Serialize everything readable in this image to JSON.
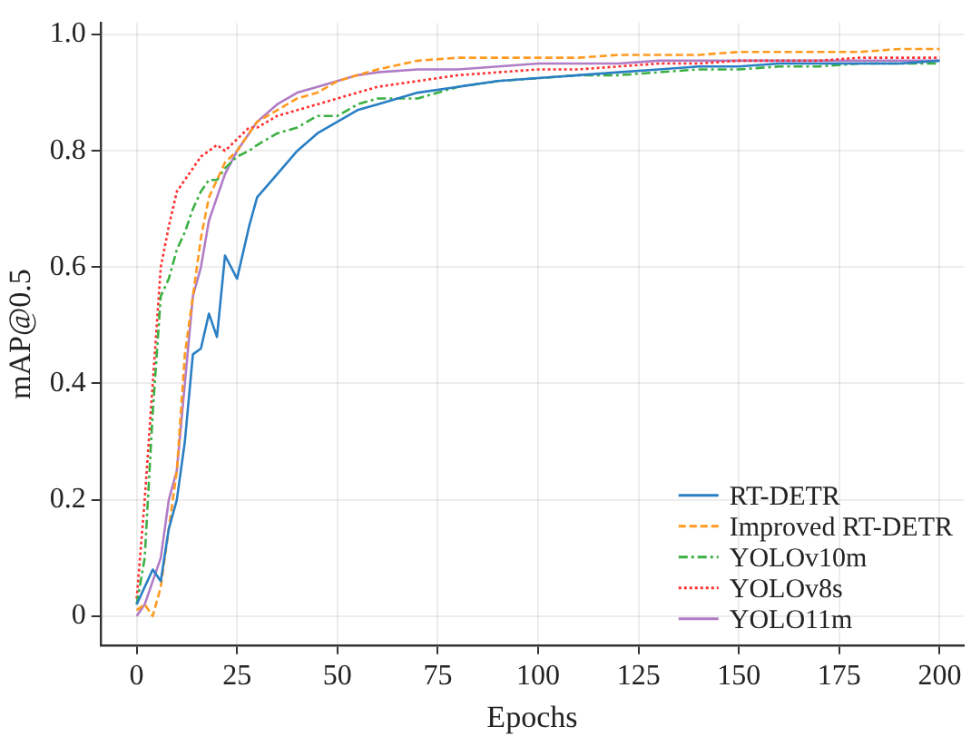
{
  "chart_data": {
    "type": "line",
    "xlabel": "Epochs",
    "ylabel": "mAP@0.5",
    "x": [
      0,
      2,
      4,
      6,
      8,
      10,
      12,
      14,
      16,
      18,
      20,
      22,
      25,
      28,
      30,
      35,
      40,
      45,
      50,
      55,
      60,
      70,
      80,
      90,
      100,
      110,
      120,
      130,
      140,
      150,
      160,
      170,
      180,
      190,
      200
    ],
    "xlim": [
      -9,
      206
    ],
    "xticks": [
      0,
      25,
      50,
      75,
      100,
      125,
      150,
      175,
      200
    ],
    "ylim": [
      -0.05,
      1.02
    ],
    "yticks": [
      0,
      0.2,
      0.4,
      0.6,
      0.8,
      {
        "value": 1,
        "label": "1.0"
      }
    ],
    "grid": true,
    "legend": "bottom right",
    "marker": "none",
    "series": [
      {
        "name": "RT-DETR",
        "color": "#2a7fc4",
        "line_style": "solid",
        "values": [
          0.02,
          0.05,
          0.08,
          0.06,
          0.15,
          0.2,
          0.3,
          0.45,
          0.46,
          0.52,
          0.48,
          0.62,
          0.58,
          0.67,
          0.72,
          0.76,
          0.8,
          0.83,
          0.85,
          0.87,
          0.88,
          0.9,
          0.91,
          0.92,
          0.925,
          0.93,
          0.935,
          0.94,
          0.945,
          0.945,
          0.95,
          0.95,
          0.95,
          0.95,
          0.955
        ]
      },
      {
        "name": "Improved RT-DETR",
        "color": "#ff9a1f",
        "line_style": "dashed",
        "values": [
          0.01,
          0.02,
          0.0,
          0.05,
          0.15,
          0.25,
          0.45,
          0.55,
          0.65,
          0.72,
          0.75,
          0.78,
          0.8,
          0.83,
          0.85,
          0.87,
          0.89,
          0.9,
          0.92,
          0.93,
          0.94,
          0.955,
          0.96,
          0.96,
          0.96,
          0.96,
          0.965,
          0.965,
          0.965,
          0.97,
          0.97,
          0.97,
          0.97,
          0.975,
          0.975
        ]
      },
      {
        "name": "YOLOv10m",
        "color": "#3cb043",
        "line_style": "dashdot",
        "values": [
          0.02,
          0.1,
          0.35,
          0.55,
          0.58,
          0.63,
          0.66,
          0.7,
          0.73,
          0.75,
          0.75,
          0.77,
          0.79,
          0.8,
          0.81,
          0.83,
          0.84,
          0.86,
          0.86,
          0.88,
          0.89,
          0.89,
          0.91,
          0.92,
          0.925,
          0.93,
          0.93,
          0.935,
          0.94,
          0.94,
          0.945,
          0.945,
          0.95,
          0.95,
          0.95
        ]
      },
      {
        "name": "YOLOv8s",
        "color": "#ff3030",
        "line_style": "dotted",
        "values": [
          0.03,
          0.2,
          0.4,
          0.6,
          0.67,
          0.73,
          0.75,
          0.77,
          0.79,
          0.8,
          0.81,
          0.8,
          0.82,
          0.84,
          0.84,
          0.86,
          0.87,
          0.88,
          0.89,
          0.9,
          0.91,
          0.92,
          0.93,
          0.935,
          0.94,
          0.94,
          0.945,
          0.95,
          0.95,
          0.955,
          0.955,
          0.955,
          0.96,
          0.96,
          0.96
        ]
      },
      {
        "name": "YOLO11m",
        "color": "#b07cc6",
        "line_style": "solid",
        "values": [
          0.0,
          0.02,
          0.06,
          0.1,
          0.2,
          0.25,
          0.4,
          0.55,
          0.6,
          0.68,
          0.72,
          0.76,
          0.8,
          0.83,
          0.85,
          0.88,
          0.9,
          0.91,
          0.92,
          0.93,
          0.935,
          0.94,
          0.94,
          0.945,
          0.95,
          0.95,
          0.95,
          0.955,
          0.955,
          0.955,
          0.955,
          0.955,
          0.955,
          0.955,
          0.955
        ]
      }
    ]
  }
}
